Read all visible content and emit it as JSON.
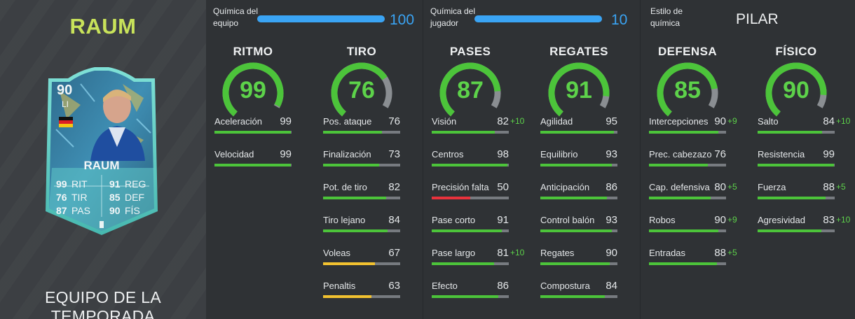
{
  "player": {
    "name": "RAUM",
    "promo_title": "EQUIPO DE LA TEMPORADA",
    "card": {
      "rating": "90",
      "position": "LI",
      "name": "RAUM",
      "stats": [
        {
          "value": "99",
          "label": "RIT"
        },
        {
          "value": "76",
          "label": "TIR"
        },
        {
          "value": "87",
          "label": "PAS"
        },
        {
          "value": "91",
          "label": "REG"
        },
        {
          "value": "85",
          "label": "DEF"
        },
        {
          "value": "90",
          "label": "FÍS"
        }
      ]
    }
  },
  "chemistry": {
    "team": {
      "label_line1": "Química del",
      "label_line2": "equipo",
      "value": "100",
      "fraction": 1.0
    },
    "player": {
      "label_line1": "Química del",
      "label_line2": "jugador",
      "value": "10",
      "fraction": 1.0
    },
    "style": {
      "label_line1": "Estilo de",
      "label_line2": "química",
      "value": "PILAR"
    }
  },
  "colors": {
    "green": "#4cc43a",
    "red": "#e8323c",
    "yellow": "#f2c230",
    "blue": "#3aa4f4",
    "name_yellow": "#c8e25a"
  },
  "categories": [
    {
      "title": "RITMO",
      "value": 99,
      "stats": [
        {
          "label": "Aceleración",
          "value": "99",
          "bonus": ""
        },
        {
          "label": "Velocidad",
          "value": "99",
          "bonus": ""
        }
      ]
    },
    {
      "title": "TIRO",
      "value": 76,
      "stats": [
        {
          "label": "Pos. ataque",
          "value": "76",
          "bonus": ""
        },
        {
          "label": "Finalización",
          "value": "73",
          "bonus": ""
        },
        {
          "label": "Pot. de tiro",
          "value": "82",
          "bonus": ""
        },
        {
          "label": "Tiro lejano",
          "value": "84",
          "bonus": ""
        },
        {
          "label": "Voleas",
          "value": "67",
          "bonus": ""
        },
        {
          "label": "Penaltis",
          "value": "63",
          "bonus": ""
        }
      ]
    },
    {
      "title": "PASES",
      "value": 87,
      "stats": [
        {
          "label": "Visión",
          "value": "82",
          "bonus": "+10"
        },
        {
          "label": "Centros",
          "value": "98",
          "bonus": ""
        },
        {
          "label": "Precisión falta",
          "value": "50",
          "bonus": ""
        },
        {
          "label": "Pase corto",
          "value": "91",
          "bonus": ""
        },
        {
          "label": "Pase largo",
          "value": "81",
          "bonus": "+10"
        },
        {
          "label": "Efecto",
          "value": "86",
          "bonus": ""
        }
      ]
    },
    {
      "title": "REGATES",
      "value": 91,
      "stats": [
        {
          "label": "Agilidad",
          "value": "95",
          "bonus": ""
        },
        {
          "label": "Equilibrio",
          "value": "93",
          "bonus": ""
        },
        {
          "label": "Anticipación",
          "value": "86",
          "bonus": ""
        },
        {
          "label": "Control balón",
          "value": "93",
          "bonus": ""
        },
        {
          "label": "Regates",
          "value": "90",
          "bonus": ""
        },
        {
          "label": "Compostura",
          "value": "84",
          "bonus": ""
        }
      ]
    },
    {
      "title": "DEFENSA",
      "value": 85,
      "stats": [
        {
          "label": "Intercepciones",
          "value": "90",
          "bonus": "+9"
        },
        {
          "label": "Prec. cabezazo",
          "value": "76",
          "bonus": ""
        },
        {
          "label": "Cap. defensiva",
          "value": "80",
          "bonus": "+5"
        },
        {
          "label": "Robos",
          "value": "90",
          "bonus": "+9"
        },
        {
          "label": "Entradas",
          "value": "88",
          "bonus": "+5"
        }
      ]
    },
    {
      "title": "FÍSICO",
      "value": 90,
      "stats": [
        {
          "label": "Salto",
          "value": "84",
          "bonus": "+10"
        },
        {
          "label": "Resistencia",
          "value": "99",
          "bonus": ""
        },
        {
          "label": "Fuerza",
          "value": "88",
          "bonus": "+5"
        },
        {
          "label": "Agresividad",
          "value": "83",
          "bonus": "+10"
        }
      ]
    }
  ]
}
